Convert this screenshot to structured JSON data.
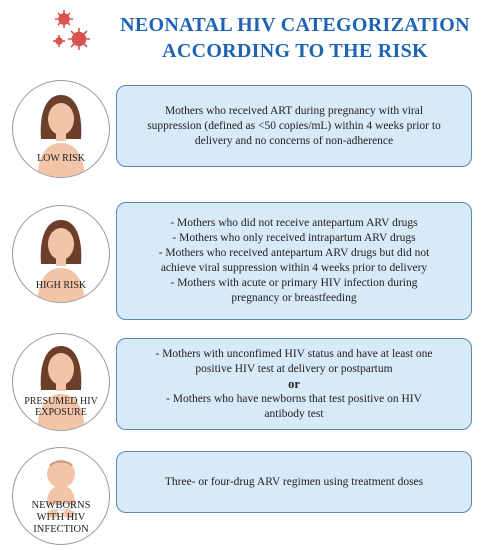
{
  "title_line1": "NEONATAL HIV CATEGORIZATION",
  "title_line2": "ACCORDING TO THE RISK",
  "rows": [
    {
      "label": "LOW RISK",
      "lines": [
        "Mothers who received ART during pregnancy with viral",
        "suppression (defined as <50 copies/mL) within 4 weeks prior to",
        "delivery and no concerns of non-adherence"
      ]
    },
    {
      "label": "HIGH RISK",
      "lines": [
        "- Mothers who did not receive antepartum ARV drugs",
        "- Mothers who only received intrapartum ARV drugs",
        "- Mothers who received antepartum ARV drugs but did not",
        "achieve viral suppression within 4 weeks prior to delivery",
        "- Mothers with acute or primary HIV infection during",
        "pregnancy or breastfeeding"
      ]
    },
    {
      "label_line1": "PRESUMED HIV",
      "label_line2": "EXPOSURE",
      "lines_a": [
        "- Mothers with unconfimed HIV status and have at least one",
        "positive HIV test at delivery or postpartum"
      ],
      "or": "or",
      "lines_b": [
        "- Mothers who have newborns that test positive on HIV",
        "antibody test"
      ]
    },
    {
      "label_line1": "NEWBORNS",
      "label_line2": "WITH HIV",
      "label_line3": "INFECTION",
      "lines": [
        "Three- or four-drug ARV regimen using treatment doses"
      ]
    }
  ],
  "colors": {
    "title": "#1f63b4",
    "box_fill": "#d8e9f7",
    "box_border": "#5b86b8",
    "virus": "#d9534f",
    "skin": "#f2c4a8",
    "hair": "#6b3f2a"
  },
  "icons": [
    "virus-icon",
    "woman-icon",
    "baby-icon"
  ]
}
